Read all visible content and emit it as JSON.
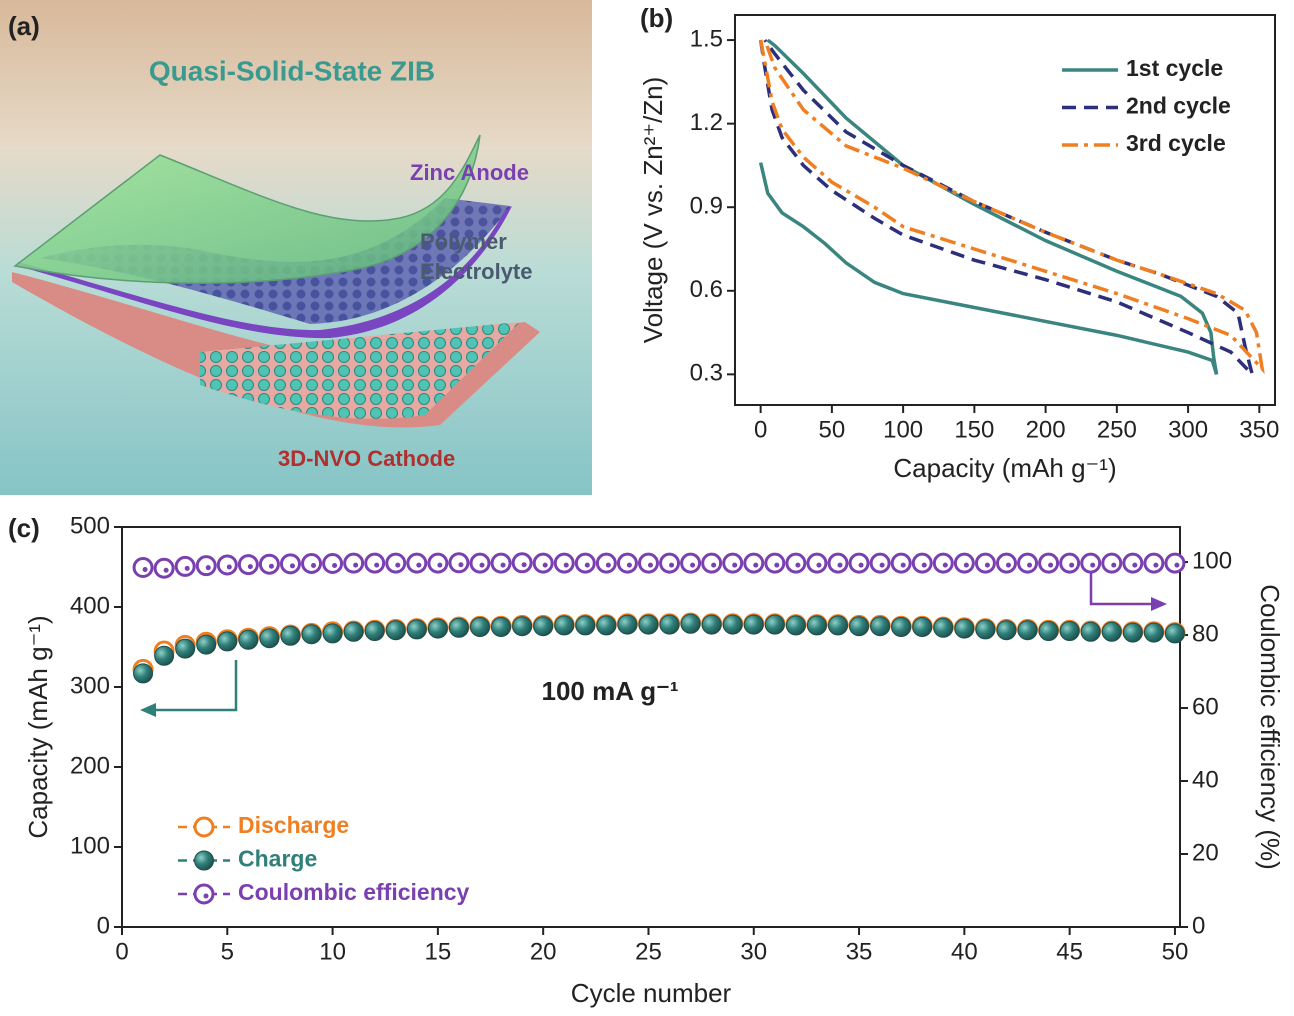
{
  "illustration": {
    "panel_label": "(a)",
    "title": "Quasi-Solid-State ZIB",
    "anode_label": "Zinc Anode",
    "electrolyte_label": [
      "Polymer",
      "Electrolyte"
    ],
    "cathode_label": "3D-NVO Cathode"
  },
  "chart_data": [
    {
      "type": "line",
      "panel_label": "(b)",
      "x_label": "Capacity (mAh g⁻¹)",
      "y_label": "Voltage (V vs. Zn²⁺/Zn)",
      "xlim": [
        -18,
        361
      ],
      "ylim": [
        0.19,
        1.59
      ],
      "xticks": [
        0,
        50,
        100,
        150,
        200,
        250,
        300,
        350
      ],
      "yticks": [
        0.3,
        0.6,
        0.9,
        1.2,
        1.5
      ],
      "legend": "upper right",
      "series": [
        {
          "name": "1st cycle",
          "color": "#3a8580",
          "dash": "solid",
          "x": [
            0,
            5,
            15,
            30,
            45,
            60,
            80,
            100,
            150,
            200,
            250,
            300,
            317,
            320,
            318,
            316,
            310,
            295,
            270,
            250,
            200,
            150,
            100,
            60,
            30,
            10,
            5
          ],
          "values": [
            1.06,
            0.95,
            0.88,
            0.83,
            0.77,
            0.7,
            0.63,
            0.59,
            0.54,
            0.49,
            0.44,
            0.38,
            0.35,
            0.3,
            0.36,
            0.45,
            0.52,
            0.58,
            0.63,
            0.67,
            0.78,
            0.91,
            1.05,
            1.22,
            1.38,
            1.48,
            1.5
          ]
        },
        {
          "name": "2nd cycle",
          "color": "#2e2f7a",
          "dash": "dashed",
          "x": [
            0,
            3,
            8,
            15,
            30,
            50,
            80,
            100,
            150,
            200,
            250,
            300,
            330,
            345,
            340,
            335,
            320,
            280,
            250,
            200,
            150,
            100,
            60,
            30,
            10,
            3
          ],
          "values": [
            1.5,
            1.4,
            1.25,
            1.15,
            1.05,
            0.96,
            0.86,
            0.8,
            0.71,
            0.64,
            0.56,
            0.45,
            0.38,
            0.3,
            0.4,
            0.52,
            0.58,
            0.66,
            0.71,
            0.81,
            0.92,
            1.05,
            1.17,
            1.32,
            1.45,
            1.5
          ]
        },
        {
          "name": "3rd cycle",
          "color": "#f07f22",
          "dash": "dashdot",
          "x": [
            0,
            3,
            8,
            15,
            30,
            50,
            80,
            100,
            150,
            200,
            250,
            300,
            330,
            352,
            348,
            340,
            320,
            280,
            250,
            200,
            150,
            100,
            60,
            30,
            10,
            3
          ],
          "values": [
            1.5,
            1.42,
            1.28,
            1.18,
            1.08,
            0.99,
            0.9,
            0.83,
            0.75,
            0.67,
            0.59,
            0.5,
            0.44,
            0.32,
            0.45,
            0.53,
            0.59,
            0.66,
            0.71,
            0.81,
            0.92,
            1.04,
            1.12,
            1.25,
            1.4,
            1.5
          ]
        }
      ]
    },
    {
      "type": "scatter",
      "panel_label": "(c)",
      "x_label": "Cycle number",
      "y_label": "Capacity (mAh g⁻¹)",
      "y2_label": "Coulombic efficiency (%)",
      "annotation": "100 mA g⁻¹",
      "xlim": [
        0,
        50.24
      ],
      "ylim": [
        0,
        500
      ],
      "y2lim": [
        0,
        109.6
      ],
      "xticks": [
        0,
        5,
        10,
        15,
        20,
        25,
        30,
        35,
        40,
        45,
        50
      ],
      "yticks": [
        0,
        100,
        200,
        300,
        400,
        500
      ],
      "y2ticks": [
        0,
        20,
        40,
        60,
        80,
        100
      ],
      "legend": "lower left",
      "x": [
        1,
        2,
        3,
        4,
        5,
        6,
        7,
        8,
        9,
        10,
        11,
        12,
        13,
        14,
        15,
        16,
        17,
        18,
        19,
        20,
        21,
        22,
        23,
        24,
        25,
        26,
        27,
        28,
        29,
        30,
        31,
        32,
        33,
        34,
        35,
        36,
        37,
        38,
        39,
        40,
        41,
        42,
        43,
        44,
        45,
        46,
        47,
        48,
        49,
        50
      ],
      "series": [
        {
          "name": "Discharge",
          "color": "#f07f22",
          "marker": "open-circle",
          "values": [
            322,
            345,
            352,
            356,
            359,
            361,
            363,
            365,
            367,
            369,
            370,
            371,
            372,
            373,
            374,
            375,
            376,
            376,
            377,
            377,
            378,
            378,
            378,
            379,
            379,
            379,
            380,
            379,
            379,
            379,
            379,
            378,
            378,
            378,
            377,
            377,
            376,
            376,
            375,
            374,
            373,
            372,
            372,
            371,
            371,
            370,
            370,
            369,
            369,
            368
          ]
        },
        {
          "name": "Charge",
          "color": "#2f7f7a",
          "marker": "filled-circle",
          "values": [
            317,
            339,
            348,
            353,
            357,
            359,
            361,
            364,
            366,
            367,
            369,
            370,
            371,
            372,
            373,
            374,
            375,
            375,
            376,
            376,
            377,
            377,
            377,
            378,
            378,
            378,
            379,
            378,
            378,
            378,
            378,
            377,
            377,
            377,
            376,
            376,
            375,
            375,
            374,
            373,
            372,
            371,
            371,
            370,
            370,
            369,
            369,
            368,
            368,
            367
          ]
        },
        {
          "name": "Coulombic efficiency",
          "color": "#7a3fb0",
          "marker": "dotted-circle",
          "axis": "y2",
          "values": [
            98.5,
            98.3,
            98.8,
            99.0,
            99.2,
            99.3,
            99.4,
            99.5,
            99.6,
            99.6,
            99.7,
            99.7,
            99.7,
            99.7,
            99.7,
            99.8,
            99.7,
            99.7,
            99.8,
            99.7,
            99.7,
            99.7,
            99.7,
            99.7,
            99.7,
            99.7,
            99.7,
            99.7,
            99.7,
            99.7,
            99.7,
            99.7,
            99.7,
            99.7,
            99.7,
            99.7,
            99.7,
            99.7,
            99.7,
            99.7,
            99.7,
            99.7,
            99.7,
            99.7,
            99.7,
            99.7,
            99.7,
            99.7,
            99.7,
            99.7
          ]
        }
      ]
    }
  ]
}
